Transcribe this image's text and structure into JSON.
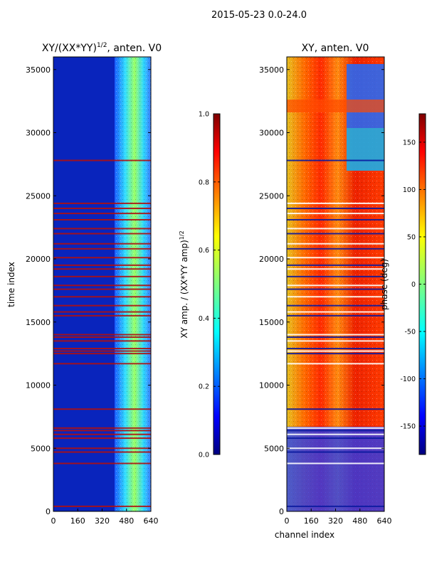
{
  "suptitle": "2015-05-23 0.0-24.0",
  "chart_data": [
    {
      "type": "heatmap",
      "title": "XY/(XX*YY)",
      "title_exponent": "1/2",
      "title_suffix": ", anten. V0",
      "xlabel": "",
      "ylabel": "time index",
      "xlim": [
        0,
        640
      ],
      "ylim": [
        0,
        36000
      ],
      "xticks": [
        "0",
        "160",
        "320",
        "480",
        "640"
      ],
      "yticks": [
        "0",
        "5000",
        "10000",
        "15000",
        "20000",
        "25000",
        "30000",
        "35000"
      ],
      "colorbar": {
        "label": "XY amp. / (XX*YY amp)",
        "label_exponent": "1/2",
        "range": [
          0.0,
          1.0
        ],
        "ticks": [
          "0.0",
          "0.2",
          "0.4",
          "0.6",
          "0.8",
          "1.0"
        ]
      },
      "flagged_time_rows": [
        400,
        3800,
        4700,
        5000,
        5800,
        6100,
        6400,
        6600,
        8100,
        11700,
        12500,
        12700,
        12900,
        13500,
        13800,
        14000,
        15500,
        15800,
        16300,
        17000,
        17600,
        17900,
        18600,
        19200,
        19500,
        20100,
        20800,
        21200,
        22000,
        22400,
        23100,
        23600,
        24000,
        24400,
        27800
      ]
    },
    {
      "type": "heatmap",
      "title": "XY, anten. V0",
      "xlabel": "channel index",
      "ylabel": "",
      "xlim": [
        0,
        640
      ],
      "ylim": [
        0,
        36000
      ],
      "xticks": [
        "0",
        "160",
        "320",
        "480",
        "640"
      ],
      "yticks": [
        "0",
        "5000",
        "10000",
        "15000",
        "20000",
        "25000",
        "30000",
        "35000"
      ],
      "colorbar": {
        "label": "phase (deg)",
        "range": [
          -180,
          180
        ],
        "ticks": [
          "-150",
          "-100",
          "-50",
          "0",
          "50",
          "100",
          "150"
        ]
      }
    }
  ]
}
